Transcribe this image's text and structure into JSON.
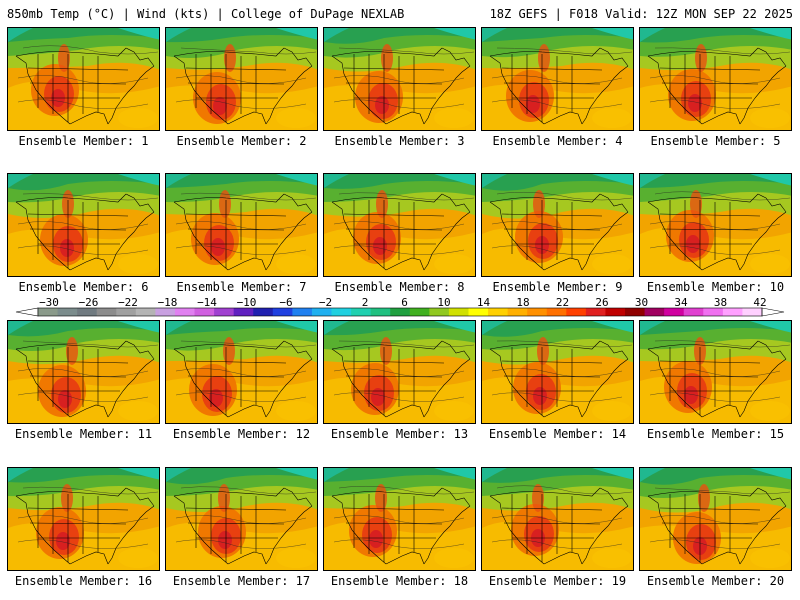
{
  "header": {
    "left_title": "850mb Temp (°C) | Wind (kts) | College of DuPage NEXLAB",
    "right_title": "18Z GEFS | F018 Valid: 12Z MON SEP 22 2025"
  },
  "members": [
    {
      "label": "Ensemble Member: 1"
    },
    {
      "label": "Ensemble Member: 2"
    },
    {
      "label": "Ensemble Member: 3"
    },
    {
      "label": "Ensemble Member: 4"
    },
    {
      "label": "Ensemble Member: 5"
    },
    {
      "label": "Ensemble Member: 6"
    },
    {
      "label": "Ensemble Member: 7"
    },
    {
      "label": "Ensemble Member: 8"
    },
    {
      "label": "Ensemble Member: 9"
    },
    {
      "label": "Ensemble Member: 10"
    },
    {
      "label": "Ensemble Member: 11"
    },
    {
      "label": "Ensemble Member: 12"
    },
    {
      "label": "Ensemble Member: 13"
    },
    {
      "label": "Ensemble Member: 14"
    },
    {
      "label": "Ensemble Member: 15"
    },
    {
      "label": "Ensemble Member: 16"
    },
    {
      "label": "Ensemble Member: 17"
    },
    {
      "label": "Ensemble Member: 18"
    },
    {
      "label": "Ensemble Member: 19"
    },
    {
      "label": "Ensemble Member: 20"
    }
  ],
  "colorbar": {
    "tick_labels": [
      "−30",
      "−26",
      "−22",
      "−18",
      "−14",
      "−10",
      "−6",
      "−2",
      "2",
      "6",
      "10",
      "14",
      "18",
      "22",
      "26",
      "30",
      "34",
      "38",
      "42"
    ],
    "colors": [
      "#8a9a8a",
      "#7b8c8c",
      "#707a80",
      "#8c8c8c",
      "#a0a0a0",
      "#b4b4b4",
      "#c8a0e0",
      "#e080f0",
      "#d060e0",
      "#a040d0",
      "#6020c0",
      "#2020b0",
      "#2040e0",
      "#2080f0",
      "#20b0f0",
      "#20d0e0",
      "#20d0b0",
      "#20c080",
      "#20a040",
      "#40b020",
      "#90c820",
      "#d0e000",
      "#ffff00",
      "#ffd000",
      "#ffb000",
      "#ff9000",
      "#ff7000",
      "#ff4000",
      "#e02020",
      "#c00000",
      "#900000",
      "#a00060",
      "#d000a0",
      "#e040d0",
      "#f070f0",
      "#ffa0ff",
      "#ffd0ff"
    ]
  }
}
